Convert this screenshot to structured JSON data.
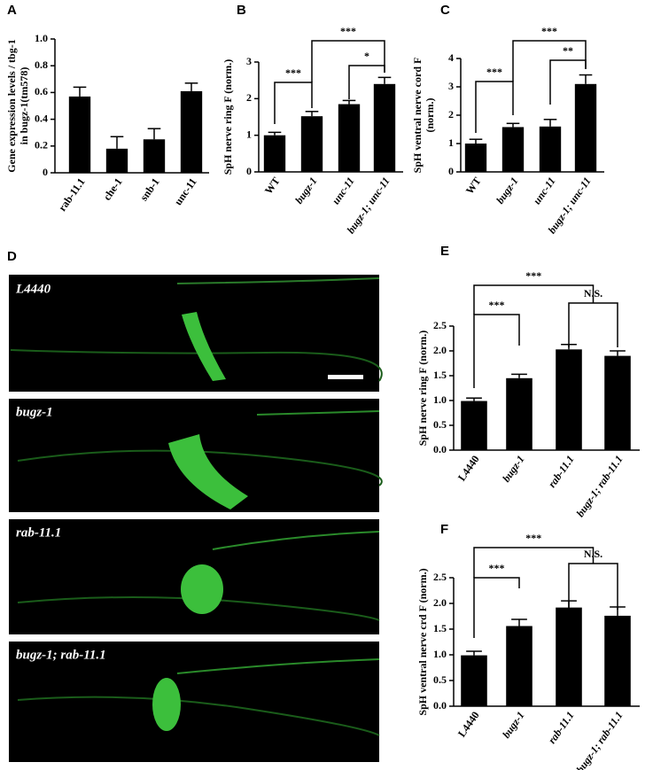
{
  "chart_data": [
    {
      "type": "bar",
      "panel_label": "A",
      "ylabel": [
        "Gene expression levels / tbg-1",
        "in bugz-1(tm578)"
      ],
      "categories": [
        "rab-11.1",
        "che-1",
        "snb-1",
        "unc-11"
      ],
      "values": [
        0.57,
        0.18,
        0.25,
        0.61
      ],
      "errors": [
        0.07,
        0.09,
        0.08,
        0.06
      ],
      "color": "#000000",
      "ylim": [
        0,
        1
      ],
      "yticks": [
        0,
        0.2,
        0.4,
        0.6,
        0.8,
        {
          "value": 1,
          "label": "1.0"
        }
      ],
      "annotations": []
    },
    {
      "type": "bar",
      "panel_label": "B",
      "ylabel": [
        "SpH nerve ring F (norm.)"
      ],
      "categories": [
        "WT",
        "bugz-1",
        "unc-11",
        "bugz-1; unc-11"
      ],
      "values": [
        1.0,
        1.52,
        1.85,
        2.4
      ],
      "errors": [
        0.08,
        0.13,
        0.1,
        0.18
      ],
      "color": "#000000",
      "ylim": [
        0,
        3
      ],
      "yticks": [
        0,
        1,
        2,
        3
      ],
      "annotations": [
        "***",
        "***",
        "*"
      ]
    },
    {
      "type": "bar",
      "panel_label": "C",
      "ylabel": [
        "SpH ventral nerve cord F",
        "(norm.)"
      ],
      "categories": [
        "WT",
        "bugz-1",
        "unc-11",
        "bugz-1; unc-11"
      ],
      "values": [
        1.0,
        1.58,
        1.6,
        3.1
      ],
      "errors": [
        0.15,
        0.13,
        0.25,
        0.32
      ],
      "color": "#000000",
      "ylim": [
        0,
        4
      ],
      "yticks": [
        0,
        1,
        2,
        3,
        4
      ],
      "annotations": [
        "***",
        "***",
        "**"
      ]
    },
    {
      "type": "bar",
      "panel_label": "E",
      "ylabel": [
        "SpH nerve ring F (norm.)"
      ],
      "categories": [
        "L4440",
        "bugz-1",
        "rab-11.1",
        "bugz-1; rab-11.1"
      ],
      "values": [
        0.99,
        1.45,
        2.03,
        1.9
      ],
      "errors": [
        0.06,
        0.08,
        0.1,
        0.1
      ],
      "color": "#000000",
      "ylim": [
        0,
        2.5
      ],
      "yticks": [
        {
          "value": 0,
          "label": "0.0"
        },
        0.5,
        {
          "value": 1,
          "label": "1.0"
        },
        1.5,
        {
          "value": 2,
          "label": "2.0"
        },
        2.5
      ],
      "annotations": [
        "***",
        "***",
        "N.S."
      ]
    },
    {
      "type": "bar",
      "panel_label": "F",
      "ylabel": [
        "SpH ventral nerve crd F (norm.)"
      ],
      "categories": [
        "L4440",
        "bugz-1",
        "rab-11.1",
        "bugz-1; rab-11.1"
      ],
      "values": [
        0.99,
        1.56,
        1.92,
        1.76
      ],
      "errors": [
        0.08,
        0.13,
        0.13,
        0.17
      ],
      "color": "#000000",
      "ylim": [
        0,
        2.5
      ],
      "yticks": [
        {
          "value": 0,
          "label": "0.0"
        },
        0.5,
        {
          "value": 1,
          "label": "1.0"
        },
        1.5,
        {
          "value": 2,
          "label": "2.0"
        },
        2.5
      ],
      "annotations": [
        "***",
        "***",
        "N.S."
      ]
    }
  ],
  "image_panel": {
    "panel_label": "D",
    "labels": [
      "L4440",
      "bugz-1",
      "rab-11.1",
      "bugz-1; rab-11.1"
    ]
  }
}
